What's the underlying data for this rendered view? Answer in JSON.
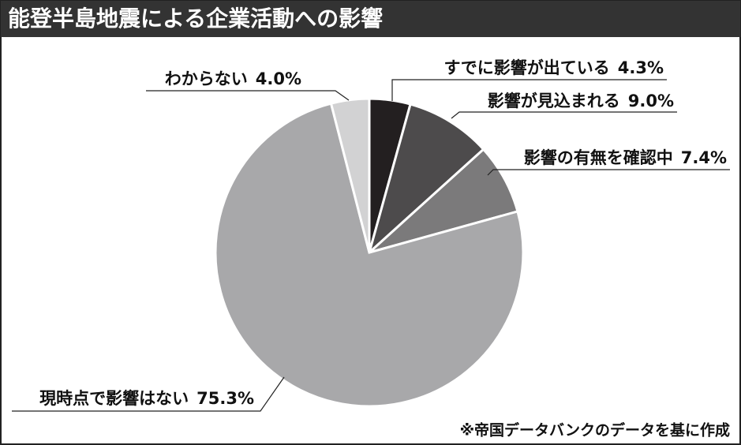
{
  "chart_data": {
    "type": "pie",
    "title": "能登半島地震による企業活動への影響",
    "note": "※帝国データバンクのデータを基に作成",
    "categories": [
      "すでに影響が出ている",
      "影響が見込まれる",
      "影響の有無を確認中",
      "現時点で影響はない",
      "わからない"
    ],
    "values": [
      4.3,
      9.0,
      7.4,
      75.3,
      4.0
    ],
    "value_labels": [
      "4.3%",
      "9.0%",
      "7.4%",
      "75.3%",
      "4.0%"
    ],
    "colors": [
      "#231f20",
      "#4d4b4c",
      "#7b7a7b",
      "#a8a8aa",
      "#d2d2d3"
    ]
  }
}
